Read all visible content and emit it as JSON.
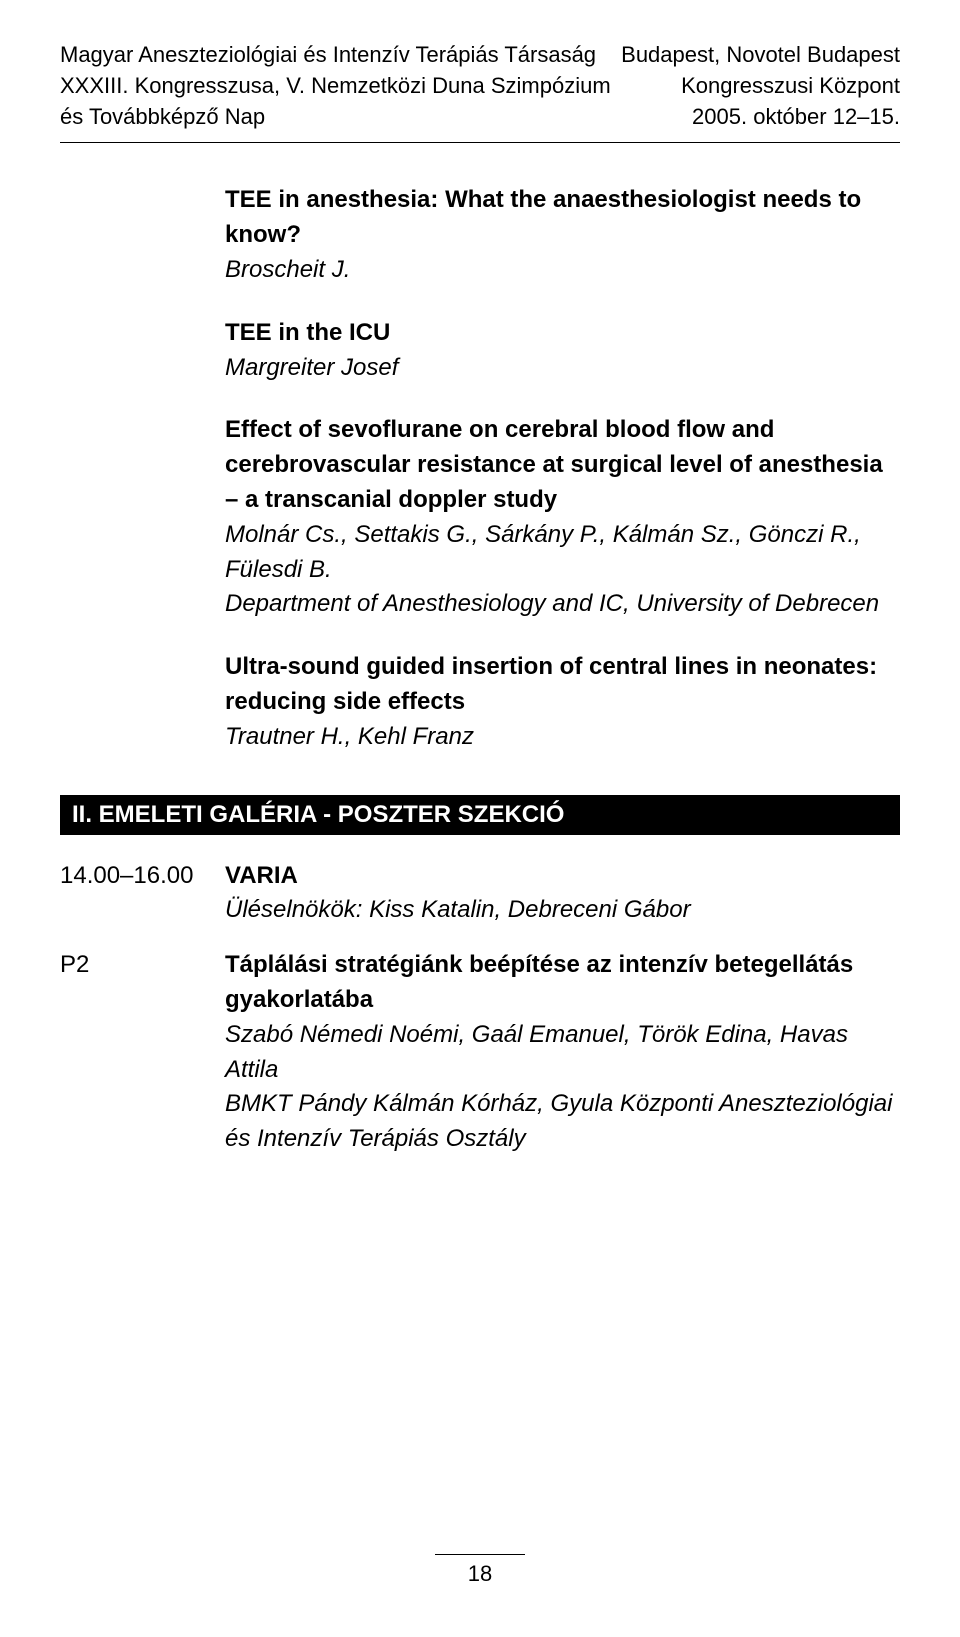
{
  "header": {
    "left_line1": "Magyar Aneszteziológiai és Intenzív Terápiás Társaság",
    "left_line2": "XXXIII. Kongresszusa, V. Nemzetközi Duna Szimpózium",
    "left_line3": "és Továbbképző Nap",
    "right_line1": "Budapest, Novotel Budapest",
    "right_line2": "Kongresszusi Központ",
    "right_line3": "2005. október 12–15."
  },
  "talks": {
    "talk1_title": "TEE in anesthesia: What the anaesthesiologist needs to know?",
    "talk1_author": "Broscheit J.",
    "talk2_title": "TEE in the ICU",
    "talk2_author": "Margreiter Josef",
    "talk3_title": "Effect of sevoflurane on cerebral blood flow and cerebrovascular resistance at surgical level of anesthesia – a transcanial doppler study",
    "talk3_authors": "Molnár Cs., Settakis G., Sárkány P., Kálmán Sz., Gönczi R., Fülesdi B.",
    "talk3_affil": "Department of Anesthesiology and IC, University of Debrecen",
    "talk4_title": "Ultra-sound guided insertion of central lines in neonates: reducing side effects",
    "talk4_authors": "Trautner H., Kehl Franz"
  },
  "section_bar": "II. EMELETI GALÉRIA - POSZTER SZEKCIÓ",
  "schedule": {
    "time": "14.00–16.00",
    "session_title": "VARIA",
    "chairs": "Üléselnökök: Kiss Katalin, Debreceni Gábor"
  },
  "poster": {
    "code": "P2",
    "title": "Táplálási stratégiánk beépítése az intenzív betegellátás gyakorlatába",
    "authors": "Szabó Némedi Noémi, Gaál Emanuel, Török Edina, Havas Attila",
    "affil": "BMKT Pándy Kálmán Kórház, Gyula Központi Aneszteziológiai és Intenzív Terápiás Osztály"
  },
  "page_number": "18"
}
